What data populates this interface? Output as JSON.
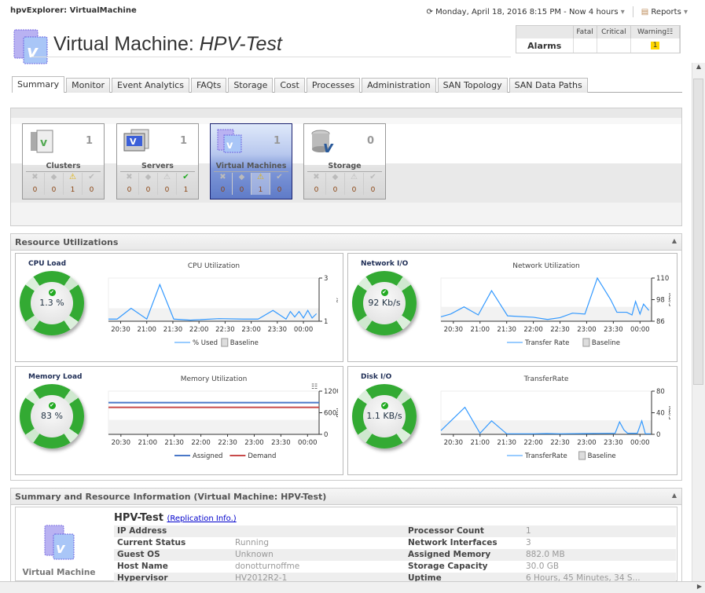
{
  "header": {
    "app_title": "hpvExplorer: VirtualMachine",
    "time_range": "Monday, April 18, 2016 8:15 PM - Now 4 hours",
    "reports_label": "Reports"
  },
  "page": {
    "title_prefix": "Virtual Machine: ",
    "title_name": "HPV-Test"
  },
  "alarms": {
    "label": "Alarms",
    "columns": [
      "Fatal",
      "Critical",
      "Warning"
    ],
    "values": [
      "",
      "",
      "1"
    ]
  },
  "tabs": [
    "Summary",
    "Monitor",
    "Event Analytics",
    "FAQts",
    "Storage",
    "Cost",
    "Processes",
    "Administration",
    "SAN Topology",
    "SAN Data Paths"
  ],
  "tiles": [
    {
      "name": "Clusters",
      "count": "1",
      "stats": [
        "0",
        "0",
        "1",
        "0"
      ],
      "selected": false
    },
    {
      "name": "Servers",
      "count": "1",
      "stats": [
        "0",
        "0",
        "0",
        "1"
      ],
      "selected": false
    },
    {
      "name": "Virtual Machines",
      "count": "1",
      "stats": [
        "0",
        "0",
        "1",
        "0"
      ],
      "selected": true
    },
    {
      "name": "Storage",
      "count": "0",
      "stats": [
        "0",
        "0",
        "0",
        "0"
      ],
      "selected": false
    }
  ],
  "resource_panel": {
    "title": "Resource Utilizations",
    "gauges": [
      {
        "title": "CPU Load",
        "value": "1.3 %"
      },
      {
        "title": "Network I/O",
        "value": "92 Kb/s"
      },
      {
        "title": "Memory Load",
        "value": "83 %"
      },
      {
        "title": "Disk I/O",
        "value": "1.1 KB/s"
      }
    ]
  },
  "chart_data": [
    {
      "type": "line",
      "title": "CPU Utilization",
      "ylabel": "%",
      "ylim": [
        1,
        3
      ],
      "yticks": [
        "1",
        "3"
      ],
      "xlim": [
        "20:16",
        "00:18"
      ],
      "xticks": [
        "20:30",
        "21:00",
        "21:30",
        "22:00",
        "22:30",
        "23:00",
        "23:30",
        "00:00"
      ],
      "baseline": [
        1,
        1.6
      ],
      "series": [
        {
          "name": "% Used",
          "color": "#3399ff",
          "x": [
            "20:16",
            "20:26",
            "20:42",
            "21:00",
            "21:15",
            "21:31",
            "21:50",
            "22:23",
            "22:51",
            "23:08",
            "23:25",
            "23:40",
            "23:45",
            "23:50",
            "23:55",
            "00:00",
            "00:05",
            "00:10",
            "00:15"
          ],
          "values": [
            1.1,
            1.1,
            1.6,
            1.1,
            2.7,
            1.1,
            1.05,
            1.12,
            1.1,
            1.1,
            1.5,
            1.1,
            1.45,
            1.2,
            1.45,
            1.15,
            1.5,
            1.15,
            1.35
          ]
        }
      ],
      "legend": [
        "% Used",
        "Baseline"
      ]
    },
    {
      "type": "line",
      "title": "Network Utilization",
      "ylabel": "Kb/s",
      "ylim": [
        86,
        110
      ],
      "yticks": [
        "86",
        "98",
        "110"
      ],
      "xlim": [
        "20:16",
        "00:13"
      ],
      "xticks": [
        "20:30",
        "21:00",
        "21:30",
        "22:00",
        "22:30",
        "23:00",
        "23:30",
        "00:00"
      ],
      "baseline": [
        86,
        94
      ],
      "series": [
        {
          "name": "Transfer Rate",
          "color": "#3399ff",
          "x": [
            "20:16",
            "20:27",
            "20:42",
            "20:58",
            "21:13",
            "21:31",
            "22:00",
            "22:16",
            "22:30",
            "22:44",
            "22:58",
            "23:12",
            "23:27",
            "23:34",
            "23:45",
            "23:51",
            "23:55",
            "00:00",
            "00:04",
            "00:10"
          ],
          "values": [
            88.5,
            90,
            94,
            89.5,
            103,
            89,
            88.2,
            87,
            88,
            90.5,
            90,
            110,
            98,
            91,
            91,
            89.5,
            97,
            90,
            95.5,
            92
          ]
        }
      ],
      "legend": [
        "Transfer Rate",
        "Baseline"
      ]
    },
    {
      "type": "line",
      "title": "Memory Utilization",
      "ylabel": "MB",
      "ylim": [
        0,
        1200
      ],
      "yticks": [
        "0",
        "600",
        "1200"
      ],
      "xlim": [
        "20:16",
        "00:13"
      ],
      "xticks": [
        "20:30",
        "21:00",
        "21:30",
        "22:00",
        "22:30",
        "23:00",
        "23:30",
        "00:00"
      ],
      "baseline": [
        0,
        400
      ],
      "series": [
        {
          "name": "Assigned",
          "color": "#4a78c8",
          "x": [
            "20:16",
            "00:13"
          ],
          "values": [
            882,
            882
          ]
        },
        {
          "name": "Demand",
          "color": "#c84a4a",
          "x": [
            "20:16",
            "00:13"
          ],
          "values": [
            750,
            750
          ]
        }
      ],
      "legend": [
        "Assigned",
        "Demand"
      ]
    },
    {
      "type": "line",
      "title": "TransferRate",
      "ylabel": "KB/s",
      "ylim": [
        0,
        80
      ],
      "yticks": [
        "0",
        "40",
        "80"
      ],
      "xlim": [
        "20:16",
        "00:13"
      ],
      "xticks": [
        "20:30",
        "21:00",
        "21:30",
        "22:00",
        "22:30",
        "23:00",
        "23:30",
        "00:00"
      ],
      "baseline": [
        0,
        26
      ],
      "series": [
        {
          "name": "TransferRate",
          "color": "#3399ff",
          "x": [
            "20:16",
            "20:43",
            "21:00",
            "21:13",
            "21:30",
            "22:00",
            "22:15",
            "22:30",
            "23:00",
            "23:32",
            "23:37",
            "23:42",
            "23:46",
            "23:57",
            "00:02",
            "00:06",
            "00:12"
          ],
          "values": [
            7,
            50,
            2,
            25,
            1,
            1,
            1.5,
            1,
            1.5,
            2,
            23,
            8,
            2,
            2,
            25,
            1,
            1
          ]
        }
      ],
      "legend": [
        "TransferRate",
        "Baseline"
      ]
    }
  ],
  "summary_panel": {
    "title": "Summary and Resource Information (Virtual Machine: HPV-Test)",
    "vm_name": "HPV-Test",
    "replication_link": "(Replication Info.)",
    "icon_label": "Virtual Machine",
    "left": [
      [
        "IP Address",
        ""
      ],
      [
        "Current Status",
        "Running"
      ],
      [
        "Guest OS",
        "Unknown"
      ],
      [
        "Host Name",
        "donotturnoffme"
      ],
      [
        "Hypervisor",
        "HV2012R2-1"
      ]
    ],
    "right": [
      [
        "Processor Count",
        "1"
      ],
      [
        "Network Interfaces",
        "3"
      ],
      [
        "Assigned Memory",
        "882.0 MB"
      ],
      [
        "Storage Capacity",
        "30.0 GB"
      ],
      [
        "Uptime",
        "6 Hours, 45 Minutes, 34 S..."
      ]
    ]
  }
}
